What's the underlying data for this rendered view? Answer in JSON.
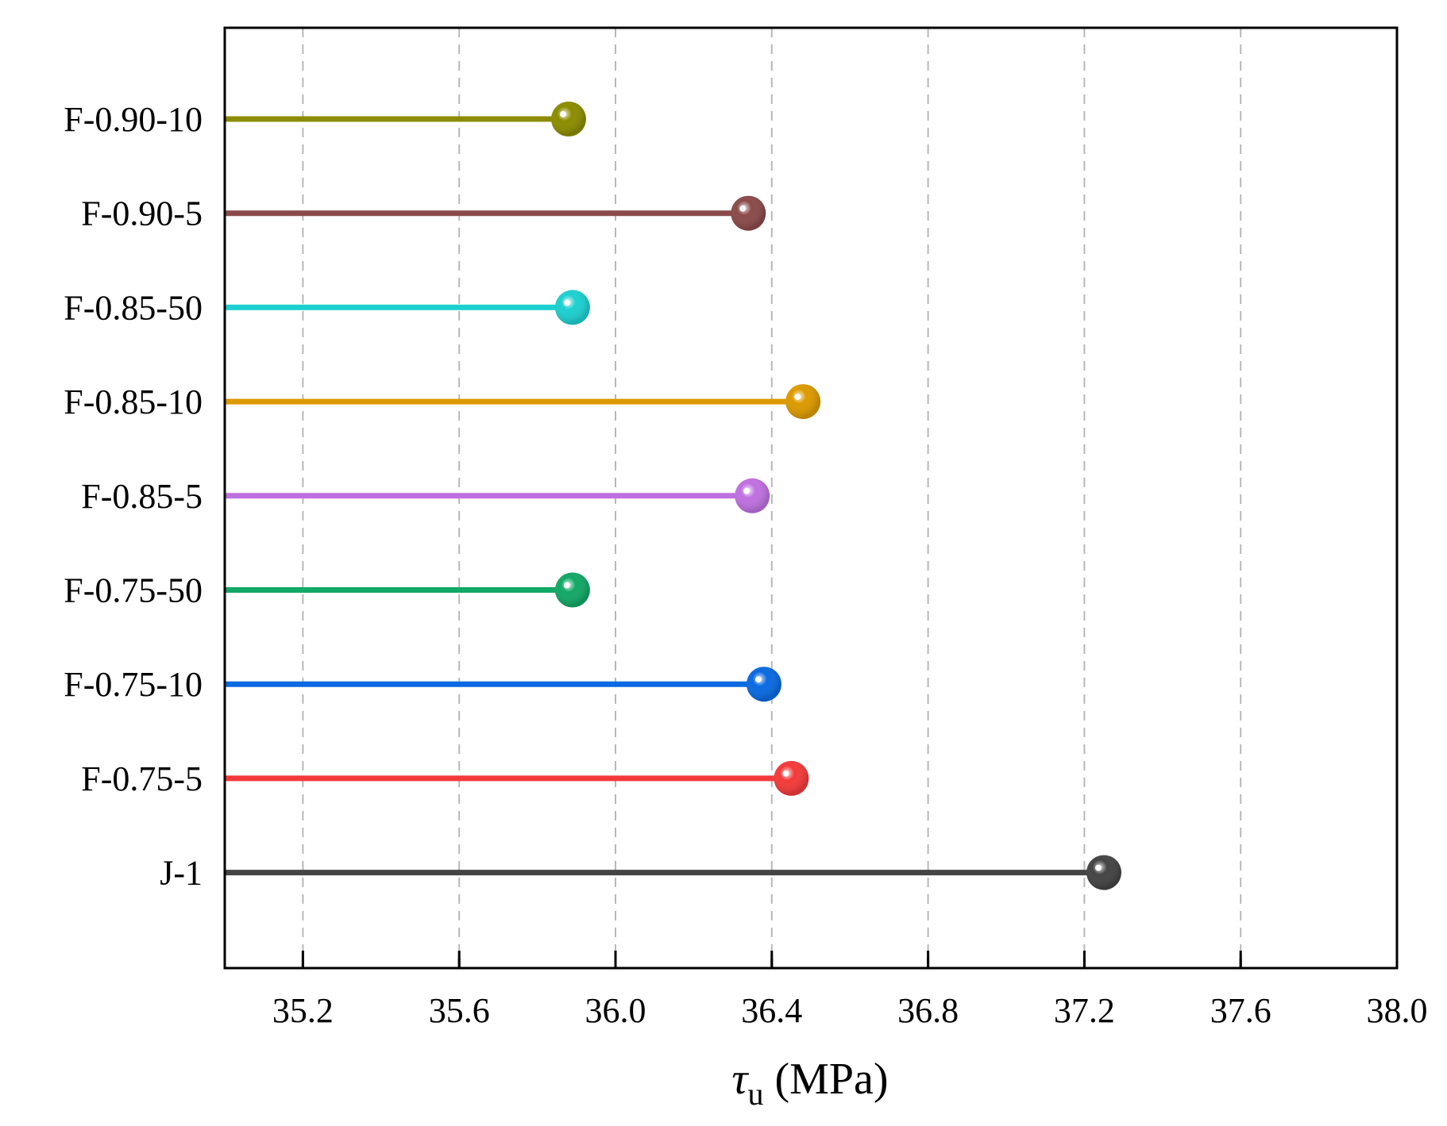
{
  "chart_data": {
    "type": "lollipop",
    "orientation": "horizontal",
    "xlabel": {
      "symbol": "τ",
      "subscript": "u",
      "unit": " (MPa)"
    },
    "xlim": [
      35.0,
      38.0
    ],
    "x_ticks": [
      35.2,
      35.6,
      36.0,
      36.4,
      36.8,
      37.2,
      37.6,
      38.0
    ],
    "x_tick_labels": [
      "35.2",
      "35.6",
      "36.0",
      "36.4",
      "36.8",
      "37.2",
      "37.6",
      "38.0"
    ],
    "grid": "vertical-dashed",
    "series": [
      {
        "name": "F-0.90-10",
        "value": 35.88,
        "color": "#8c8c00"
      },
      {
        "name": "F-0.90-5",
        "value": 36.34,
        "color": "#8b4a4a"
      },
      {
        "name": "F-0.85-50",
        "value": 35.89,
        "color": "#1dd0d0"
      },
      {
        "name": "F-0.85-10",
        "value": 36.48,
        "color": "#dc9a00"
      },
      {
        "name": "F-0.85-5",
        "value": 36.35,
        "color": "#bf70e0"
      },
      {
        "name": "F-0.75-50",
        "value": 35.89,
        "color": "#12a866"
      },
      {
        "name": "F-0.75-10",
        "value": 36.38,
        "color": "#0a6ae0"
      },
      {
        "name": "F-0.75-5",
        "value": 36.45,
        "color": "#f43a3a"
      },
      {
        "name": "J-1",
        "value": 37.25,
        "color": "#444444"
      }
    ]
  }
}
